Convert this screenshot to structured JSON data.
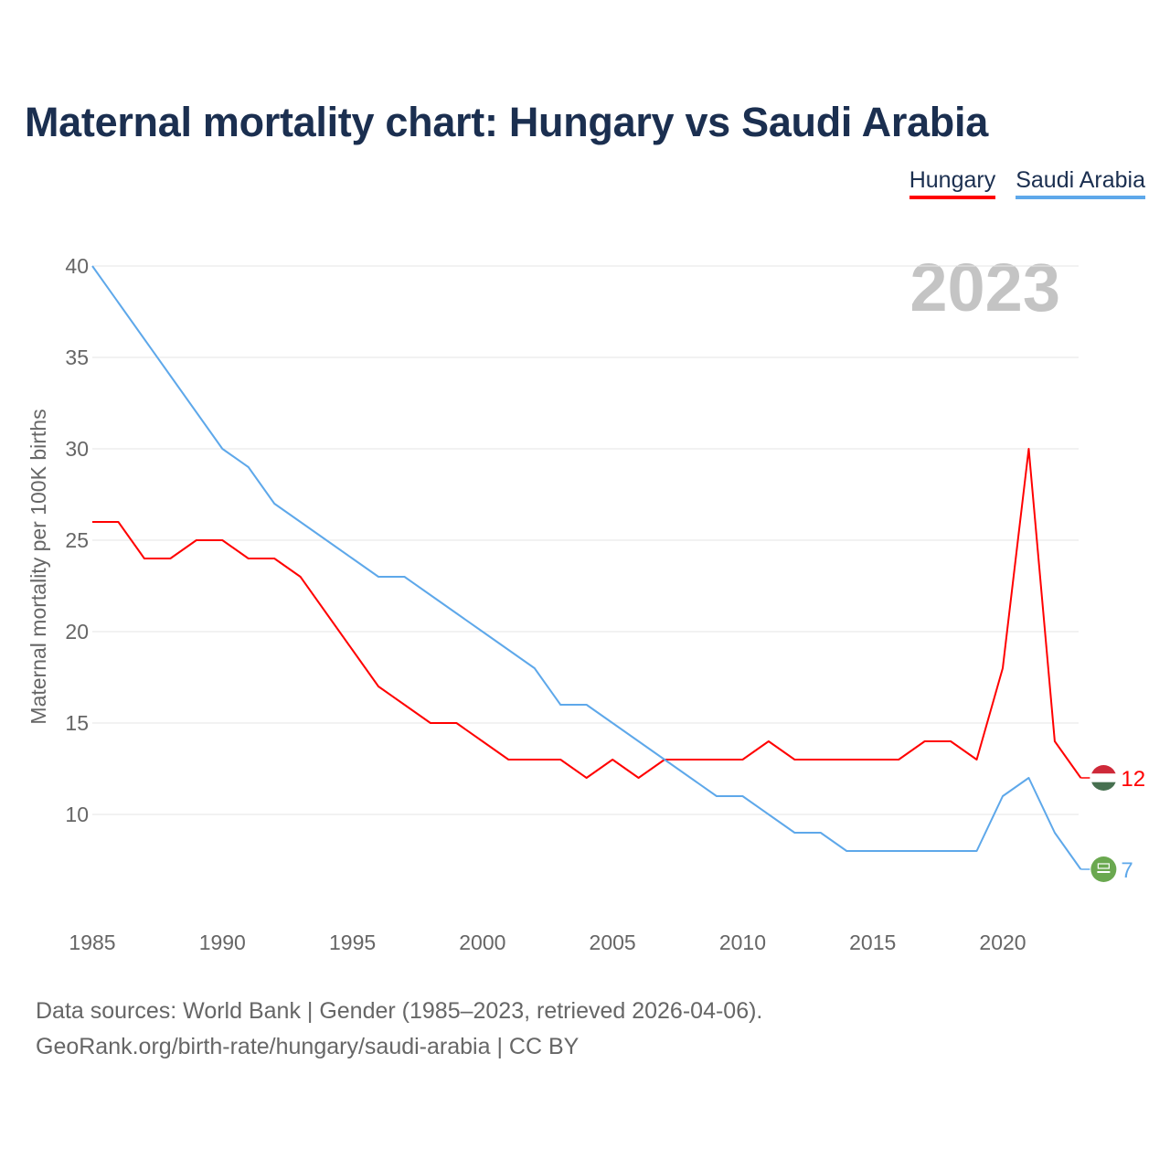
{
  "title": "Maternal mortality chart: Hungary vs Saudi Arabia",
  "year_label": "2023",
  "source_line1": "Data sources: World Bank | Gender (1985–2023, retrieved 2026-04-06).",
  "source_line2": "GeoRank.org/birth-rate/hungary/saudi-arabia | CC BY",
  "chart_data": {
    "type": "line",
    "title": "Maternal mortality chart: Hungary vs Saudi Arabia",
    "xlabel": "",
    "ylabel": "Maternal mortality per 100K births",
    "xlim": [
      1985,
      2023
    ],
    "ylim": [
      5,
      40
    ],
    "xticks": [
      1985,
      1990,
      1995,
      2000,
      2005,
      2010,
      2015,
      2020
    ],
    "yticks": [
      10,
      15,
      20,
      25,
      30,
      35,
      40
    ],
    "grid": true,
    "legend_position": "top-right",
    "x": [
      1985,
      1986,
      1987,
      1988,
      1989,
      1990,
      1991,
      1992,
      1993,
      1994,
      1995,
      1996,
      1997,
      1998,
      1999,
      2000,
      2001,
      2002,
      2003,
      2004,
      2005,
      2006,
      2007,
      2008,
      2009,
      2010,
      2011,
      2012,
      2013,
      2014,
      2015,
      2016,
      2017,
      2018,
      2019,
      2020,
      2021,
      2022,
      2023
    ],
    "series": [
      {
        "name": "Hungary",
        "color": "#ff0000",
        "end_label": "12",
        "values": [
          26,
          26,
          24,
          24,
          25,
          25,
          24,
          24,
          23,
          21,
          19,
          17,
          16,
          15,
          15,
          14,
          13,
          13,
          13,
          12,
          13,
          12,
          13,
          13,
          13,
          13,
          14,
          13,
          13,
          13,
          13,
          13,
          14,
          14,
          13,
          18,
          30,
          14,
          12
        ]
      },
      {
        "name": "Saudi Arabia",
        "color": "#5ea8ea",
        "end_label": "7",
        "values": [
          40,
          38,
          36,
          34,
          32,
          30,
          29,
          27,
          26,
          25,
          24,
          23,
          23,
          22,
          21,
          20,
          19,
          18,
          16,
          16,
          15,
          14,
          13,
          12,
          11,
          11,
          10,
          9,
          9,
          8,
          8,
          8,
          8,
          8,
          8,
          11,
          12,
          9,
          7
        ]
      }
    ]
  }
}
